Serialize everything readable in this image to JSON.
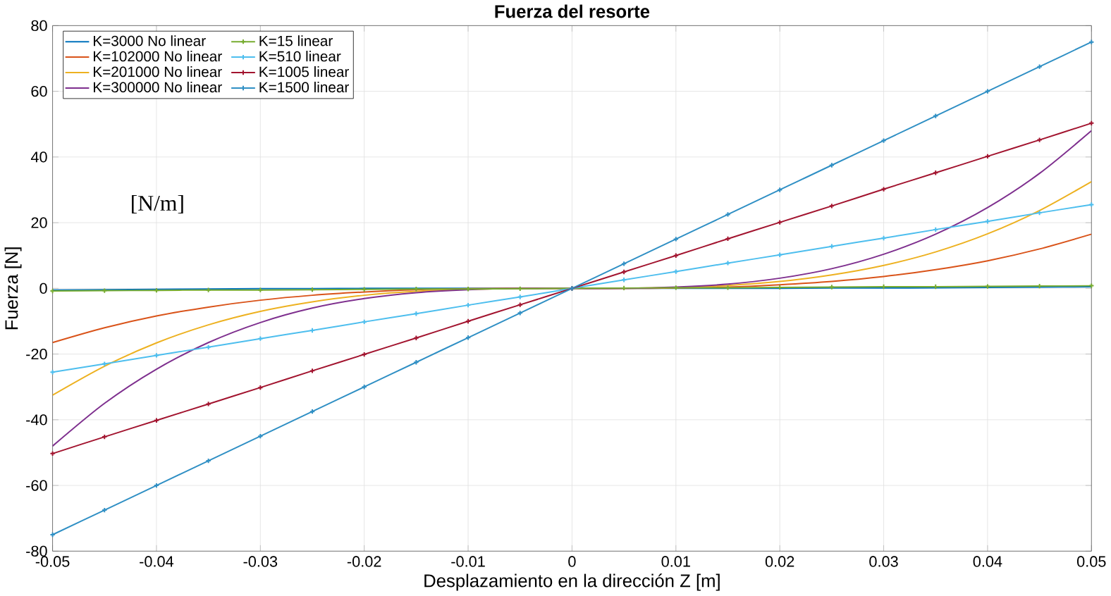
{
  "chart_data": {
    "type": "line",
    "title": "Fuerza del resorte",
    "xlabel": "Desplazamiento en la dirección Z [m]",
    "ylabel": "Fuerza [N]",
    "x": [
      -0.05,
      -0.045,
      -0.04,
      -0.035,
      -0.03,
      -0.025,
      -0.02,
      -0.015,
      -0.01,
      -0.005,
      0,
      0.005,
      0.01,
      0.015,
      0.02,
      0.025,
      0.03,
      0.035,
      0.04,
      0.045,
      0.05
    ],
    "series": [
      {
        "name": "K=3000 No linear",
        "color": "#0072bd",
        "marker": "none",
        "values": [
          -0.5,
          -0.4,
          -0.3,
          -0.2,
          -0.1,
          -0.1,
          0,
          0,
          0,
          0,
          0,
          0,
          0,
          0,
          0,
          0.1,
          0.1,
          0.2,
          0.3,
          0.4,
          0.5
        ]
      },
      {
        "name": "K=102000 No linear",
        "color": "#d95319",
        "marker": "none",
        "values": [
          -16.5,
          -12,
          -8.4,
          -5.7,
          -3.6,
          -2.1,
          -1.1,
          -0.4,
          -0.1,
          0,
          0,
          0,
          0.1,
          0.4,
          1.1,
          2.1,
          3.6,
          5.7,
          8.4,
          12,
          16.5
        ]
      },
      {
        "name": "K=201000 No linear",
        "color": "#edb120",
        "marker": "none",
        "values": [
          -32.5,
          -23.7,
          -16.6,
          -11.1,
          -7,
          -4.1,
          -2.1,
          -0.9,
          -0.3,
          0,
          0,
          0,
          0.3,
          0.9,
          2.1,
          4.1,
          7,
          11.1,
          16.6,
          23.7,
          32.5
        ]
      },
      {
        "name": "K=300000 No linear",
        "color": "#7e2f8e",
        "marker": "none",
        "values": [
          -48,
          -35,
          -24.6,
          -16.5,
          -10.4,
          -6,
          -3.1,
          -1.3,
          -0.4,
          0,
          0,
          0,
          0.4,
          1.3,
          3.1,
          6,
          10.4,
          16.5,
          24.6,
          35,
          48
        ]
      },
      {
        "name": "K=15 linear",
        "color": "#77ac30",
        "marker": "cross",
        "values": [
          -0.8,
          -0.7,
          -0.6,
          -0.5,
          -0.5,
          -0.4,
          -0.3,
          -0.2,
          -0.2,
          -0.1,
          0,
          0.1,
          0.2,
          0.2,
          0.3,
          0.4,
          0.5,
          0.5,
          0.6,
          0.7,
          0.8
        ]
      },
      {
        "name": "K=510 linear",
        "color": "#4dbeee",
        "marker": "cross",
        "values": [
          -25.5,
          -23,
          -20.4,
          -17.9,
          -15.3,
          -12.8,
          -10.2,
          -7.7,
          -5.1,
          -2.6,
          0,
          2.6,
          5.1,
          7.7,
          10.2,
          12.8,
          15.3,
          17.9,
          20.4,
          23,
          25.5
        ]
      },
      {
        "name": "K=1005 linear",
        "color": "#a2142f",
        "marker": "cross",
        "values": [
          -50.3,
          -45.2,
          -40.2,
          -35.2,
          -30.2,
          -25.1,
          -20.1,
          -15.1,
          -10,
          -5,
          0,
          5,
          10,
          15.1,
          20.1,
          25.1,
          30.2,
          35.2,
          40.2,
          45.2,
          50.3
        ]
      },
      {
        "name": "K=1500 linear",
        "color": "#2f8fc4",
        "marker": "cross",
        "values": [
          -75,
          -67.5,
          -60,
          -52.5,
          -45,
          -37.5,
          -30,
          -22.5,
          -15,
          -7.5,
          0,
          7.5,
          15,
          22.5,
          30,
          37.5,
          45,
          52.5,
          60,
          67.5,
          75
        ]
      }
    ],
    "xlim": [
      -0.05,
      0.05
    ],
    "ylim": [
      -80,
      80
    ],
    "xticks": [
      -0.05,
      -0.04,
      -0.03,
      -0.02,
      -0.01,
      0,
      0.01,
      0.02,
      0.03,
      0.04,
      0.05
    ],
    "yticks": [
      -80,
      -60,
      -40,
      -20,
      0,
      20,
      40,
      60,
      80
    ],
    "grid": true,
    "legend": "top left",
    "line_style": "solid",
    "annotations": [
      "[N/m]"
    ]
  }
}
